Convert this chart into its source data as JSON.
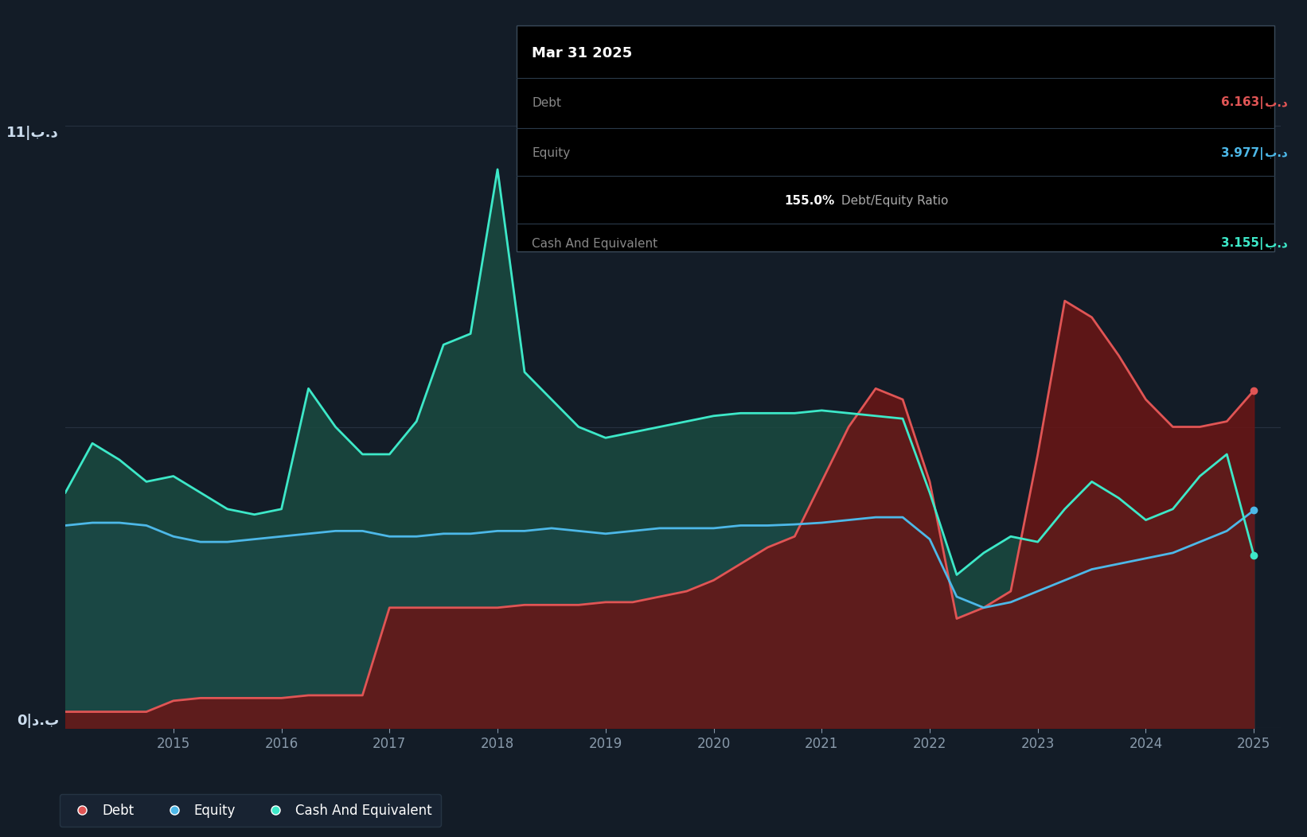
{
  "bg_color": "#131c27",
  "plot_bg_color": "#131c27",
  "grid_color": "#263040",
  "line_colors": {
    "debt": "#e05555",
    "equity": "#4db8e8",
    "cash": "#3de8c8"
  },
  "fill_colors": {
    "debt": "#6b1515",
    "equity": "#1a3a5c",
    "cash": "#1a4a40"
  },
  "ylabel_top": "11|ب.د",
  "ylabel_bottom": "0|د.ب",
  "x_years": [
    2014.0,
    2014.25,
    2014.5,
    2014.75,
    2015.0,
    2015.25,
    2015.5,
    2015.75,
    2016.0,
    2016.25,
    2016.5,
    2016.75,
    2017.0,
    2017.25,
    2017.5,
    2017.75,
    2018.0,
    2018.25,
    2018.5,
    2018.75,
    2019.0,
    2019.25,
    2019.5,
    2019.75,
    2020.0,
    2020.25,
    2020.5,
    2020.75,
    2021.0,
    2021.25,
    2021.5,
    2021.75,
    2022.0,
    2022.25,
    2022.5,
    2022.75,
    2023.0,
    2023.25,
    2023.5,
    2023.75,
    2024.0,
    2024.25,
    2024.5,
    2024.75,
    2025.0
  ],
  "debt_values": [
    0.3,
    0.3,
    0.3,
    0.3,
    0.5,
    0.55,
    0.55,
    0.55,
    0.55,
    0.6,
    0.6,
    0.6,
    2.2,
    2.2,
    2.2,
    2.2,
    2.2,
    2.25,
    2.25,
    2.25,
    2.3,
    2.3,
    2.4,
    2.5,
    2.7,
    3.0,
    3.3,
    3.5,
    4.5,
    5.5,
    6.2,
    6.0,
    4.5,
    2.0,
    2.2,
    2.5,
    5.0,
    7.8,
    7.5,
    6.8,
    6.0,
    5.5,
    5.5,
    5.6,
    6.163
  ],
  "equity_values": [
    3.7,
    3.75,
    3.75,
    3.7,
    3.5,
    3.4,
    3.4,
    3.45,
    3.5,
    3.55,
    3.6,
    3.6,
    3.5,
    3.5,
    3.55,
    3.55,
    3.6,
    3.6,
    3.65,
    3.6,
    3.55,
    3.6,
    3.65,
    3.65,
    3.65,
    3.7,
    3.7,
    3.72,
    3.75,
    3.8,
    3.85,
    3.85,
    3.45,
    2.4,
    2.2,
    2.3,
    2.5,
    2.7,
    2.9,
    3.0,
    3.1,
    3.2,
    3.4,
    3.6,
    3.977
  ],
  "cash_values": [
    4.3,
    5.2,
    4.9,
    4.5,
    4.6,
    4.3,
    4.0,
    3.9,
    4.0,
    6.2,
    5.5,
    5.0,
    5.0,
    5.6,
    7.0,
    7.2,
    10.2,
    6.5,
    6.0,
    5.5,
    5.3,
    5.4,
    5.5,
    5.6,
    5.7,
    5.75,
    5.75,
    5.75,
    5.8,
    5.75,
    5.7,
    5.65,
    4.3,
    2.8,
    3.2,
    3.5,
    3.4,
    4.0,
    4.5,
    4.2,
    3.8,
    4.0,
    4.6,
    5.0,
    3.155
  ],
  "xlim": [
    2014.0,
    2025.25
  ],
  "ylim": [
    0,
    11
  ],
  "ytick_vals": [
    0,
    5.5,
    11
  ],
  "xtick_labels": [
    "2015",
    "2016",
    "2017",
    "2018",
    "2019",
    "2020",
    "2021",
    "2022",
    "2023",
    "2024",
    "2025"
  ],
  "xtick_positions": [
    2015,
    2016,
    2017,
    2018,
    2019,
    2020,
    2021,
    2022,
    2023,
    2024,
    2025
  ],
  "tooltip": {
    "date": "Mar 31 2025",
    "debt_label": "Debt",
    "debt_value": "6.163|",
    "debt_unit": "ب.د",
    "equity_label": "Equity",
    "equity_value": "3.977|",
    "equity_unit": "ب.د",
    "ratio_value": "155.0%",
    "ratio_label": " Debt/Equity Ratio",
    "cash_label": "Cash And Equivalent",
    "cash_value": "3.155|",
    "cash_unit": "ب.د"
  },
  "legend": [
    {
      "label": "Debt",
      "color": "#e05555"
    },
    {
      "label": "Equity",
      "color": "#4db8e8"
    },
    {
      "label": "Cash And Equivalent",
      "color": "#3de8c8"
    }
  ]
}
